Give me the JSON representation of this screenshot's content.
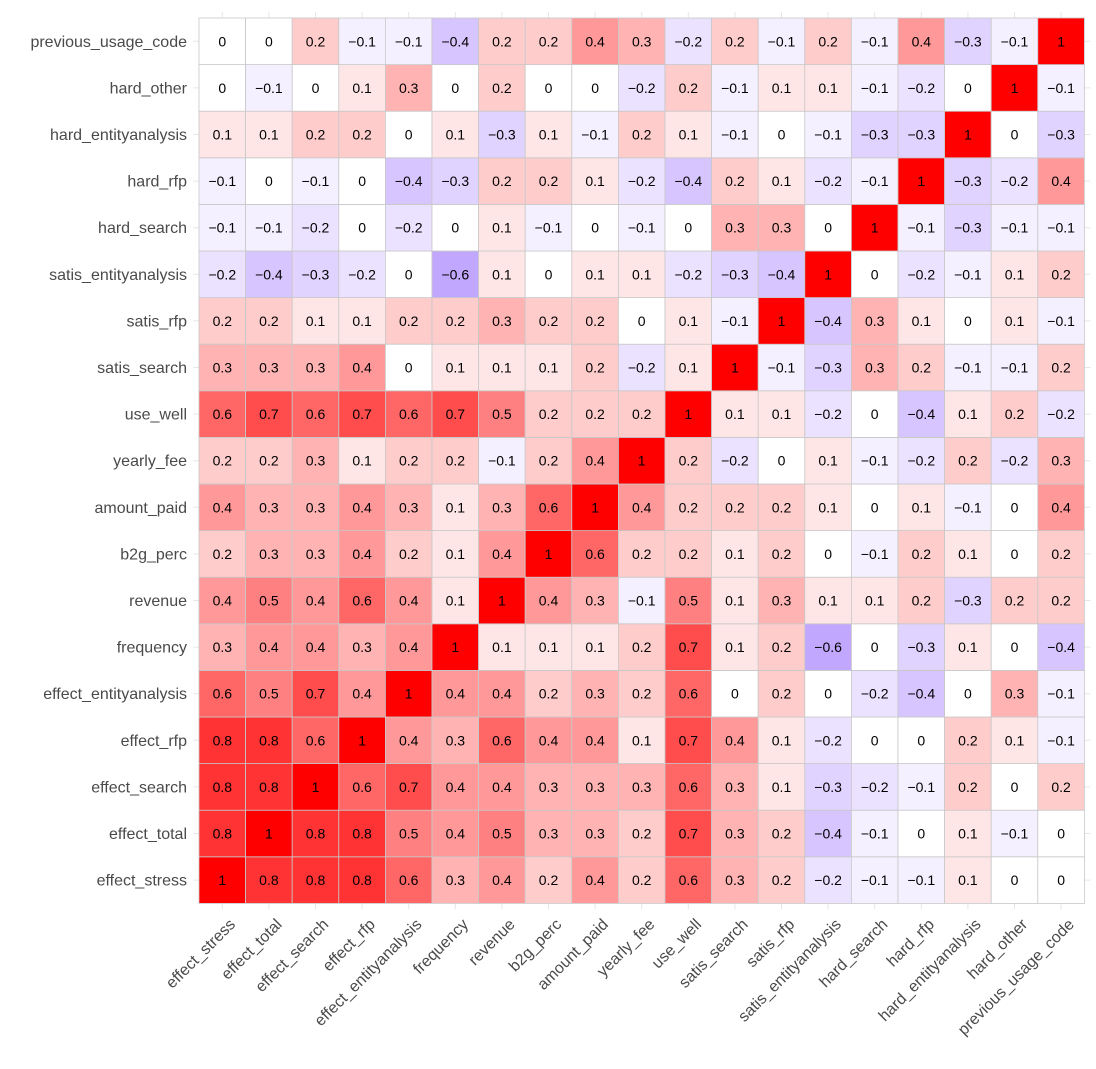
{
  "chart_data": {
    "type": "heatmap",
    "title": "",
    "xlabel": "",
    "ylabel": "",
    "value_range": [
      -1,
      1
    ],
    "colors": {
      "negative": "#9a6dff",
      "zero": "#ffffff",
      "positive": "#ff0000",
      "cell_border": "#c8c8c8",
      "grid": "#e6e6e6",
      "label": "#4a4a4a",
      "value_text": "#000000"
    },
    "variables": [
      "effect_stress",
      "effect_total",
      "effect_search",
      "effect_rfp",
      "effect_entityanalysis",
      "frequency",
      "revenue",
      "b2g_perc",
      "amount_paid",
      "yearly_fee",
      "use_well",
      "satis_search",
      "satis_rfp",
      "satis_entityanalysis",
      "hard_search",
      "hard_rfp",
      "hard_entityanalysis",
      "hard_other",
      "previous_usage_code"
    ],
    "matrix": [
      [
        1,
        0.8,
        0.8,
        0.8,
        0.6,
        0.3,
        0.4,
        0.2,
        0.4,
        0.2,
        0.6,
        0.3,
        0.2,
        -0.2,
        -0.1,
        -0.1,
        0.1,
        0,
        0
      ],
      [
        0.8,
        1,
        0.8,
        0.8,
        0.5,
        0.4,
        0.5,
        0.3,
        0.3,
        0.2,
        0.7,
        0.3,
        0.2,
        -0.4,
        -0.1,
        0,
        0.1,
        -0.1,
        0
      ],
      [
        0.8,
        0.8,
        1,
        0.6,
        0.7,
        0.4,
        0.4,
        0.3,
        0.3,
        0.3,
        0.6,
        0.3,
        0.1,
        -0.3,
        -0.2,
        -0.1,
        0.2,
        0,
        0.2
      ],
      [
        0.8,
        0.8,
        0.6,
        1,
        0.4,
        0.3,
        0.6,
        0.4,
        0.4,
        0.1,
        0.7,
        0.4,
        0.1,
        -0.2,
        0,
        0,
        0.2,
        0.1,
        -0.1
      ],
      [
        0.6,
        0.5,
        0.7,
        0.4,
        1,
        0.4,
        0.4,
        0.2,
        0.3,
        0.2,
        0.6,
        0,
        0.2,
        0,
        -0.2,
        -0.4,
        0,
        0.3,
        -0.1
      ],
      [
        0.3,
        0.4,
        0.4,
        0.3,
        0.4,
        1,
        0.1,
        0.1,
        0.1,
        0.2,
        0.7,
        0.1,
        0.2,
        -0.6,
        0,
        -0.3,
        0.1,
        0,
        -0.4
      ],
      [
        0.4,
        0.5,
        0.4,
        0.6,
        0.4,
        0.1,
        1,
        0.4,
        0.3,
        -0.1,
        0.5,
        0.1,
        0.3,
        0.1,
        0.1,
        0.2,
        -0.3,
        0.2,
        0.2
      ],
      [
        0.2,
        0.3,
        0.3,
        0.4,
        0.2,
        0.1,
        0.4,
        1,
        0.6,
        0.2,
        0.2,
        0.1,
        0.2,
        0,
        -0.1,
        0.2,
        0.1,
        0,
        0.2
      ],
      [
        0.4,
        0.3,
        0.3,
        0.4,
        0.3,
        0.1,
        0.3,
        0.6,
        1,
        0.4,
        0.2,
        0.2,
        0.2,
        0.1,
        0,
        0.1,
        -0.1,
        0,
        0.4
      ],
      [
        0.2,
        0.2,
        0.3,
        0.1,
        0.2,
        0.2,
        -0.1,
        0.2,
        0.4,
        1,
        0.2,
        -0.2,
        0,
        0.1,
        -0.1,
        -0.2,
        0.2,
        -0.2,
        0.3
      ],
      [
        0.6,
        0.7,
        0.6,
        0.7,
        0.6,
        0.7,
        0.5,
        0.2,
        0.2,
        0.2,
        1,
        0.1,
        0.1,
        -0.2,
        0,
        -0.4,
        0.1,
        0.2,
        -0.2
      ],
      [
        0.3,
        0.3,
        0.3,
        0.4,
        0,
        0.1,
        0.1,
        0.1,
        0.2,
        -0.2,
        0.1,
        1,
        -0.1,
        -0.3,
        0.3,
        0.2,
        -0.1,
        -0.1,
        0.2
      ],
      [
        0.2,
        0.2,
        0.1,
        0.1,
        0.2,
        0.2,
        0.3,
        0.2,
        0.2,
        0,
        0.1,
        -0.1,
        1,
        -0.4,
        0.3,
        0.1,
        0,
        0.1,
        -0.1
      ],
      [
        -0.2,
        -0.4,
        -0.3,
        -0.2,
        0,
        -0.6,
        0.1,
        0,
        0.1,
        0.1,
        -0.2,
        -0.3,
        -0.4,
        1,
        0,
        -0.2,
        -0.1,
        0.1,
        0.2
      ],
      [
        -0.1,
        -0.1,
        -0.2,
        0,
        -0.2,
        0,
        0.1,
        -0.1,
        0,
        -0.1,
        0,
        0.3,
        0.3,
        0,
        1,
        -0.1,
        -0.3,
        -0.1,
        -0.1
      ],
      [
        -0.1,
        0,
        -0.1,
        0,
        -0.4,
        -0.3,
        0.2,
        0.2,
        0.1,
        -0.2,
        -0.4,
        0.2,
        0.1,
        -0.2,
        -0.1,
        1,
        -0.3,
        -0.2,
        0.4
      ],
      [
        0.1,
        0.1,
        0.2,
        0.2,
        0,
        0.1,
        -0.3,
        0.1,
        -0.1,
        0.2,
        0.1,
        -0.1,
        0,
        -0.1,
        -0.3,
        -0.3,
        1,
        0,
        -0.3
      ],
      [
        0,
        -0.1,
        0,
        0.1,
        0.3,
        0,
        0.2,
        0,
        0,
        -0.2,
        0.2,
        -0.1,
        0.1,
        0.1,
        -0.1,
        -0.2,
        0,
        1,
        -0.1
      ],
      [
        0,
        0,
        0.2,
        -0.1,
        -0.1,
        -0.4,
        0.2,
        0.2,
        0.4,
        0.3,
        -0.2,
        0.2,
        -0.1,
        0.2,
        -0.1,
        0.4,
        -0.3,
        -0.1,
        1
      ]
    ],
    "grid": true,
    "legend": "none",
    "annotations": "cell values shown inside each cell"
  }
}
